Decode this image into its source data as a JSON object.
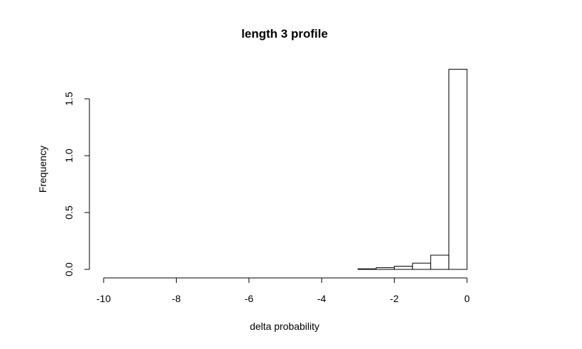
{
  "chart_data": {
    "type": "bar",
    "subtype": "histogram",
    "title": "length 3 profile",
    "xlabel": "delta probability",
    "ylabel": "Frequency",
    "xlim": [
      -10,
      0
    ],
    "ylim": [
      0,
      1.8
    ],
    "xticks": [
      "-10",
      "-8",
      "-6",
      "-4",
      "-2",
      "0"
    ],
    "yticks": [
      "0.0",
      "0.5",
      "1.0",
      "1.5"
    ],
    "bins": [
      {
        "x0": -10.0,
        "x1": -9.5,
        "value": 0
      },
      {
        "x0": -9.5,
        "x1": -9.0,
        "value": 0
      },
      {
        "x0": -9.0,
        "x1": -8.5,
        "value": 0
      },
      {
        "x0": -8.5,
        "x1": -8.0,
        "value": 0
      },
      {
        "x0": -8.0,
        "x1": -7.5,
        "value": 0
      },
      {
        "x0": -7.5,
        "x1": -7.0,
        "value": 0
      },
      {
        "x0": -7.0,
        "x1": -6.5,
        "value": 0
      },
      {
        "x0": -6.5,
        "x1": -6.0,
        "value": 0
      },
      {
        "x0": -6.0,
        "x1": -5.5,
        "value": 0
      },
      {
        "x0": -5.5,
        "x1": -5.0,
        "value": 0
      },
      {
        "x0": -5.0,
        "x1": -4.5,
        "value": 0
      },
      {
        "x0": -4.5,
        "x1": -4.0,
        "value": 0
      },
      {
        "x0": -4.0,
        "x1": -3.5,
        "value": 0
      },
      {
        "x0": -3.5,
        "x1": -3.0,
        "value": 0
      },
      {
        "x0": -3.0,
        "x1": -2.5,
        "value": 0.005
      },
      {
        "x0": -2.5,
        "x1": -2.0,
        "value": 0.015
      },
      {
        "x0": -2.0,
        "x1": -1.5,
        "value": 0.028
      },
      {
        "x0": -1.5,
        "x1": -1.0,
        "value": 0.055
      },
      {
        "x0": -1.0,
        "x1": -0.5,
        "value": 0.125
      },
      {
        "x0": -0.5,
        "x1": 0.0,
        "value": 1.76
      }
    ],
    "grid": false,
    "bar_fill": "#ffffff",
    "bar_stroke": "#000000"
  }
}
